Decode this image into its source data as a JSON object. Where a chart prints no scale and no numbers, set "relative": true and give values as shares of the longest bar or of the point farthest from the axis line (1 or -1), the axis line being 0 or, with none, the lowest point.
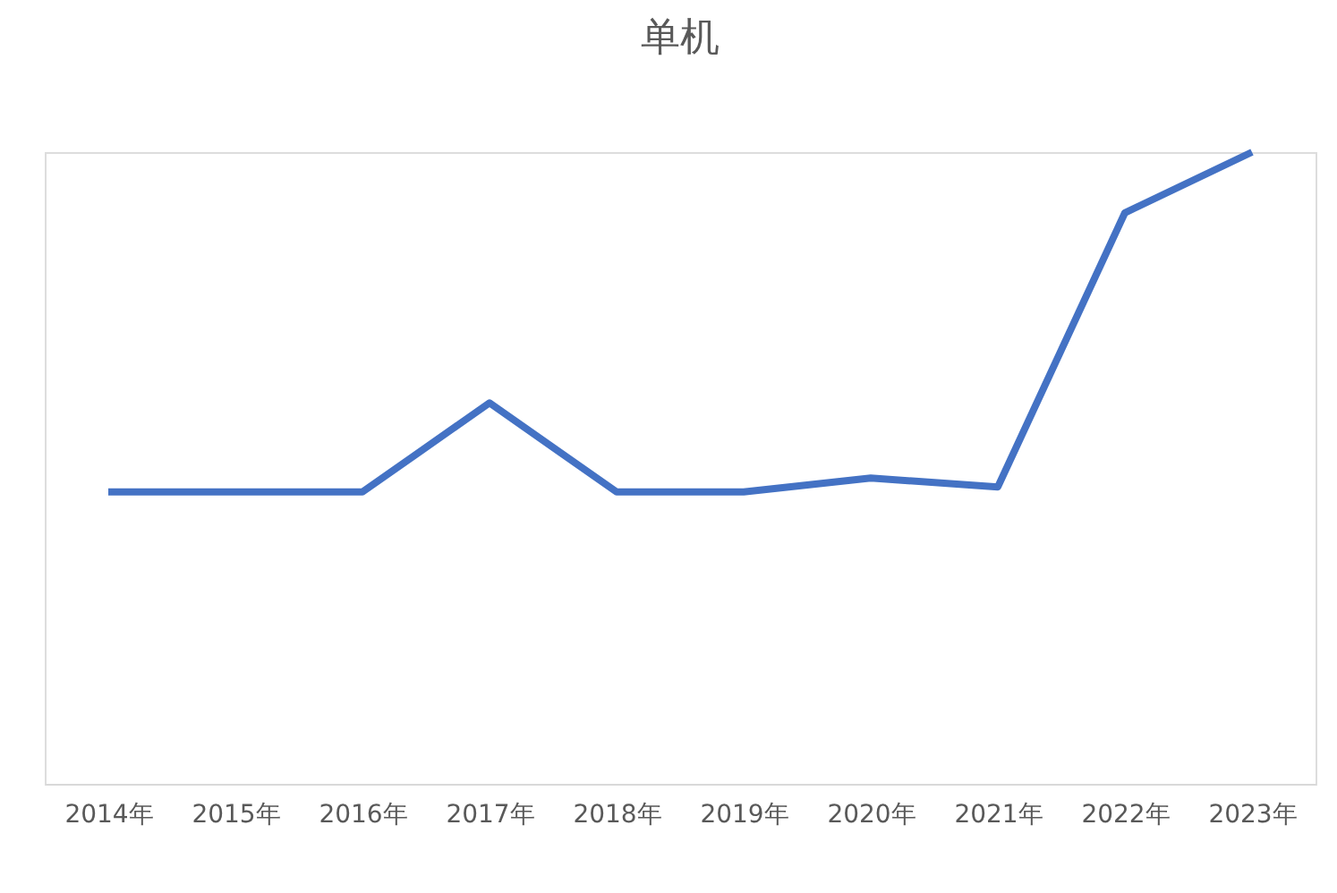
{
  "chart_data": {
    "type": "line",
    "title": "单机",
    "relative": true,
    "categories": [
      "2014年",
      "2015年",
      "2016年",
      "2017年",
      "2018年",
      "2019年",
      "2020年",
      "2021年",
      "2022年",
      "2023年"
    ],
    "series": [
      {
        "color": "#4472c4",
        "values": [
          0.462,
          0.462,
          0.462,
          0.603,
          0.462,
          0.462,
          0.484,
          0.47,
          0.904,
          1
        ]
      }
    ],
    "grid": false,
    "legend": false,
    "marker": "none",
    "line_style": "solid"
  }
}
